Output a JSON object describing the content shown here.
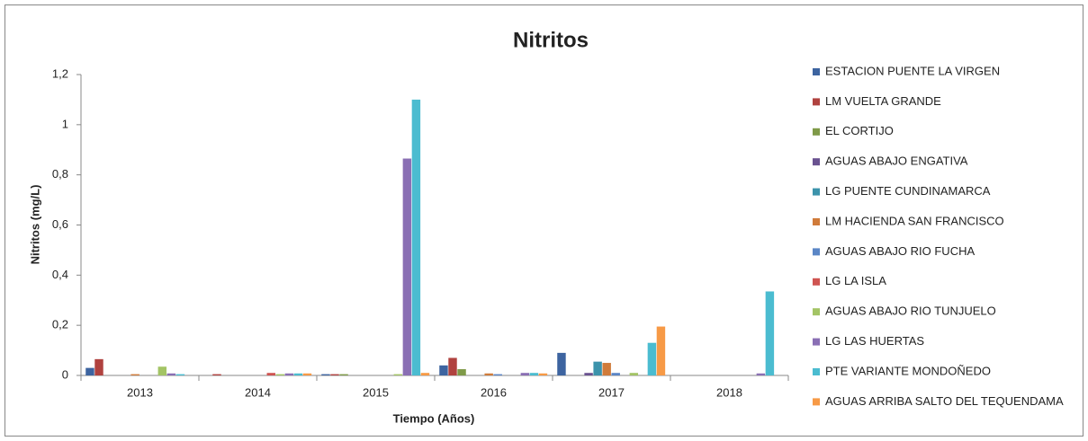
{
  "chart_data": {
    "type": "bar",
    "title": "Nitritos",
    "x_label": "Tiempo (Años)",
    "y_label": "Nitritos (mg/L)",
    "categories": [
      "2013",
      "2014",
      "2015",
      "2016",
      "2017",
      "2018"
    ],
    "series": [
      {
        "name": "ESTACION PUENTE LA VIRGEN",
        "color": "#3D64A0",
        "values": [
          0.03,
          0,
          0.005,
          0.04,
          0.09,
          0
        ]
      },
      {
        "name": "LM VUELTA GRANDE",
        "color": "#B0423F",
        "values": [
          0.065,
          0.005,
          0.005,
          0.07,
          0,
          0
        ]
      },
      {
        "name": "EL CORTIJO",
        "color": "#7F9A48",
        "values": [
          0,
          0,
          0.005,
          0.025,
          0,
          0
        ]
      },
      {
        "name": "AGUAS ABAJO ENGATIVA",
        "color": "#6A5290",
        "values": [
          0,
          0,
          0,
          0,
          0.01,
          0
        ]
      },
      {
        "name": "LG PUENTE CUNDINAMARCA",
        "color": "#3C93AB",
        "values": [
          0,
          0,
          0,
          0,
          0.055,
          0
        ]
      },
      {
        "name": "LM HACIENDA SAN FRANCISCO",
        "color": "#D07B3A",
        "values": [
          0.005,
          0,
          0,
          0.008,
          0.05,
          0
        ]
      },
      {
        "name": "AGUAS ABAJO RIO FUCHA",
        "color": "#5B86C6",
        "values": [
          0,
          0,
          0,
          0.005,
          0.01,
          0
        ]
      },
      {
        "name": "LG LA ISLA",
        "color": "#CF5451",
        "values": [
          0,
          0.01,
          0,
          0,
          0,
          0
        ]
      },
      {
        "name": "AGUAS ABAJO RIO TUNJUELO",
        "color": "#A3C465",
        "values": [
          0.035,
          0.005,
          0.005,
          0,
          0.01,
          0
        ]
      },
      {
        "name": "LG LAS HUERTAS",
        "color": "#8A6FB4",
        "values": [
          0.008,
          0.008,
          0.865,
          0.01,
          0,
          0.008
        ]
      },
      {
        "name": "PTE VARIANTE MONDOÑEDO",
        "color": "#4BBCD0",
        "values": [
          0.005,
          0.008,
          1.1,
          0.01,
          0.13,
          0.335
        ]
      },
      {
        "name": "AGUAS ARRIBA SALTO DEL TEQUENDAMA",
        "color": "#F79A46",
        "values": [
          0,
          0.008,
          0.01,
          0.008,
          0.195,
          0
        ]
      }
    ],
    "ylim": [
      0,
      1.2
    ],
    "yticks": [
      0,
      {
        "value": 0.2,
        "label": "0,2"
      },
      {
        "value": 0.4,
        "label": "0,4"
      },
      {
        "value": 0.6,
        "label": "0,6"
      },
      {
        "value": 0.8,
        "label": "0,8"
      },
      1,
      {
        "value": 1.2,
        "label": "1,2"
      }
    ],
    "grid": false,
    "legend": "right"
  }
}
